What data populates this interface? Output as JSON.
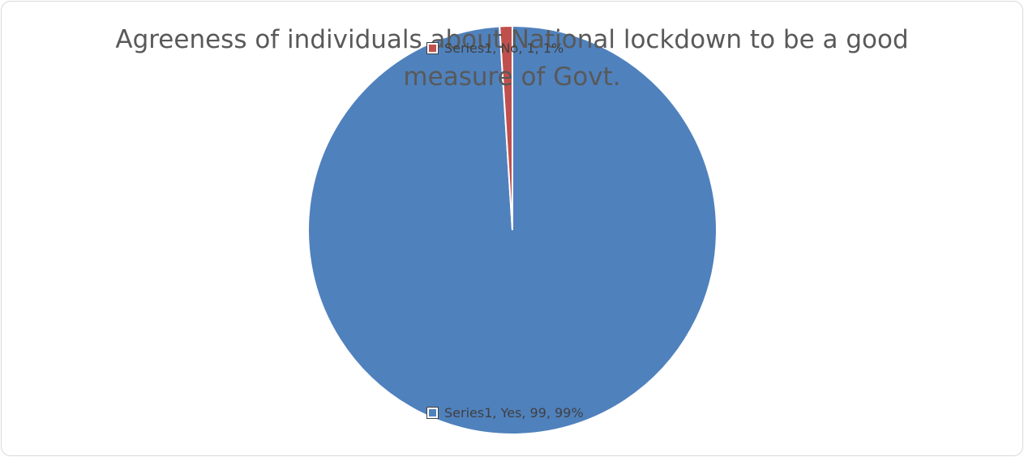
{
  "chart_data": {
    "type": "pie",
    "title": "Agreeness of individuals about National lockdown to be a good measure of Govt.",
    "series": [
      {
        "name": "Series1",
        "categories": [
          "Yes",
          "No"
        ],
        "values": [
          99,
          1
        ],
        "percent_labels": [
          "99%",
          "1%"
        ],
        "colors": [
          "#4F81BD",
          "#C0504D"
        ]
      }
    ],
    "data_labels": [
      "Series1, Yes, 99, 99%",
      "Series1, No, 1, 1%"
    ],
    "legend": "none",
    "start_angle_deg": 0,
    "slice_border_color": "#ffffff"
  }
}
